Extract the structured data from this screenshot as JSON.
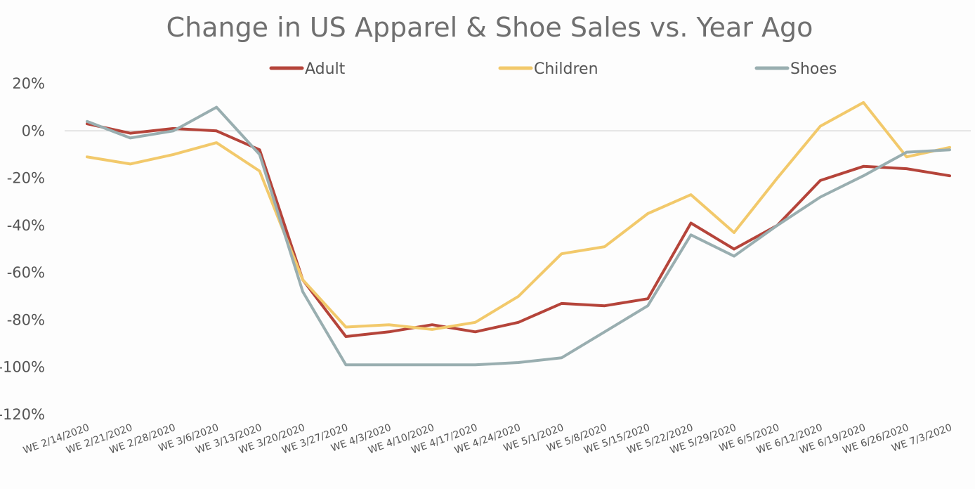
{
  "chart_data": {
    "type": "line",
    "title": "Change in US Apparel & Shoe Sales vs. Year Ago",
    "xlabel": "",
    "ylabel": "",
    "ylim": [
      -120,
      20
    ],
    "yticks": [
      20,
      0,
      -20,
      -40,
      -60,
      -80,
      -100,
      -120
    ],
    "ytick_labels": [
      "20%",
      "0%",
      "-20%",
      "-40%",
      "-60%",
      "-80%",
      "-100%",
      "-120%"
    ],
    "grid": false,
    "legend_position": "top",
    "categories": [
      "WE 2/14/2020",
      "WE 2/21/2020",
      "WE 2/28/2020",
      "WE 3/6/2020",
      "WE 3/13/2020",
      "WE 3/20/2020",
      "WE 3/27/2020",
      "WE 4/3/2020",
      "WE 4/10/2020",
      "WE 4/17/2020",
      "WE 4/24/2020",
      "WE 5/1/2020",
      "WE 5/8/2020",
      "WE 5/15/2020",
      "WE 5/22/2020",
      "WE 5/29/2020",
      "WE 6/5/2020",
      "WE 6/12/2020",
      "WE 6/19/2020",
      "WE 6/26/2020",
      "WE 7/3/2020"
    ],
    "series": [
      {
        "name": "Adult",
        "color": "#b5443a",
        "values": [
          3,
          -1,
          1,
          0,
          -8,
          -63,
          -87,
          -85,
          -82,
          -85,
          -81,
          -73,
          -74,
          -71,
          -39,
          -50,
          -40,
          -21,
          -15,
          -16,
          -19
        ]
      },
      {
        "name": "Children",
        "color": "#f2c96b",
        "values": [
          -11,
          -14,
          -10,
          -5,
          -17,
          -63,
          -83,
          -82,
          -84,
          -81,
          -70,
          -52,
          -49,
          -35,
          -27,
          -43,
          -20,
          2,
          12,
          -11,
          -7
        ]
      },
      {
        "name": "Shoes",
        "color": "#99aeb0",
        "values": [
          4,
          -3,
          0,
          10,
          -10,
          -68,
          -99,
          -99,
          -99,
          -99,
          -98,
          -96,
          -85,
          -74,
          -44,
          -53,
          -40,
          -28,
          -19,
          -9,
          -8
        ]
      }
    ]
  }
}
